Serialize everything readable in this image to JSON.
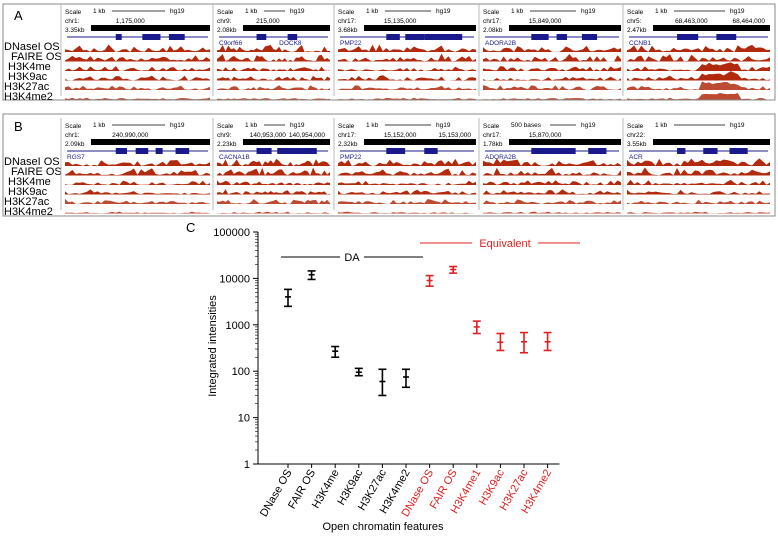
{
  "figure": {
    "panel_a": {
      "letter": "A",
      "row_labels": [
        "DNaseI OS",
        "FAIRE OS",
        "H3K4me",
        "H3K9ac",
        "H3K27ac",
        "H3K4me2"
      ],
      "tracks": [
        {
          "scale": "Scale",
          "kb": "1 kb",
          "genome": "hg19",
          "chrom": "chr1:",
          "coord": "1,175,000",
          "height": "3.35kb",
          "gene": ""
        },
        {
          "scale": "Scale",
          "kb": "1 kb",
          "genome": "hg19",
          "chrom": "chr9:",
          "coord": "215,000",
          "height": "2.08kb",
          "gene": "C9orf66",
          "gene2": "DOCK8"
        },
        {
          "scale": "Scale",
          "kb": "1 kb",
          "genome": "hg19",
          "chrom": "chr17:",
          "coord": "15,135,000",
          "height": "3.68kb",
          "gene": "PMP22"
        },
        {
          "scale": "Scale",
          "kb": "1 kb",
          "genome": "hg19",
          "chrom": "chr17:",
          "coord": "15,849,000",
          "height": "2.08kb",
          "gene": "ADORA2B"
        },
        {
          "scale": "Scale",
          "kb": "1 kb",
          "genome": "hg19",
          "chrom": "chr5:",
          "coord": "68,463,000",
          "coord2": "68,464,000",
          "height": "2.47kb",
          "gene": "CCNB1"
        }
      ]
    },
    "panel_b": {
      "letter": "B",
      "row_labels": [
        "DNaseI OS",
        "FAIRE OS",
        "H3K4me",
        "H3K9ac",
        "H3K27ac",
        "H3K4me2"
      ],
      "tracks": [
        {
          "scale": "Scale",
          "kb": "1 kb",
          "genome": "hg19",
          "chrom": "chr1:",
          "coord": "240,990,000",
          "height": "2.09kb",
          "gene": "RGS7"
        },
        {
          "scale": "Scale",
          "kb": "1 kb",
          "genome": "hg19",
          "chrom": "chr9:",
          "coord": "140,953,000",
          "coord2": "140,954,000",
          "height": "2.23kb",
          "gene": "CACNA1B"
        },
        {
          "scale": "Scale",
          "kb": "1 kb",
          "genome": "hg19",
          "chrom": "chr17:",
          "coord": "15,152,000",
          "coord2": "15,153,000",
          "height": "2.32kb",
          "gene": "PMP22"
        },
        {
          "scale": "Scale",
          "kb": "500 bases",
          "genome": "hg19",
          "chrom": "chr17:",
          "coord": "15,870,000",
          "height": "1.78kb",
          "gene": "ADORA2B"
        },
        {
          "scale": "Scale",
          "kb": "1 kb",
          "genome": "hg19",
          "chrom": "chr22:",
          "coord": "",
          "height": "3.55kb",
          "gene": "ACR"
        }
      ]
    },
    "panel_c": {
      "letter": "C",
      "da_label": "DA",
      "equiv_label": "Equivalent"
    }
  },
  "colors": {
    "signal": "#b22a0e",
    "gene": "#1a1a8c",
    "da": "#000000",
    "equivalent": "#e02020"
  },
  "chart_data": {
    "type": "scatter",
    "title": "",
    "xlabel": "Open chromatin features",
    "ylabel": "Integrated intensities",
    "yscale": "log",
    "ylim": [
      1,
      100000
    ],
    "yticks": [
      "1",
      "10",
      "100",
      "1000",
      "10000",
      "100000"
    ],
    "categories": [
      "DNase OS",
      "FAIR OS",
      "H3K4me",
      "H3K9ac",
      "H3K27ac",
      "H3K4me2",
      "DNase OS",
      "FAIR OS",
      "H3K4me1",
      "H3K9ac",
      "H3K27ac",
      "H3K4me2"
    ],
    "series": [
      {
        "name": "DA",
        "means": [
          4000,
          12000,
          270,
          95,
          60,
          75
        ],
        "lower": [
          2500,
          9500,
          200,
          80,
          30,
          45
        ],
        "upper": [
          5800,
          14500,
          340,
          115,
          110,
          110
        ]
      },
      {
        "name": "Equivalent",
        "means": [
          9000,
          15500,
          900,
          420,
          430,
          430
        ],
        "lower": [
          6800,
          13000,
          650,
          280,
          250,
          280
        ],
        "upper": [
          11500,
          18000,
          1200,
          650,
          680,
          680
        ]
      }
    ]
  }
}
